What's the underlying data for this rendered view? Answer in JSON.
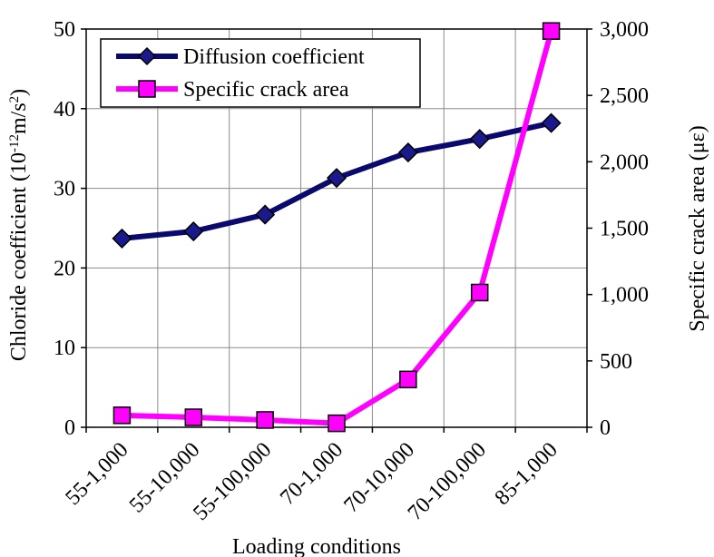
{
  "chart_data": {
    "type": "line",
    "xlabel": "Loading conditions",
    "ylabel_left": "Chloride coefficient (10",
    "ylabel_left_sup": "-12",
    "ylabel_left_mid": "m/s",
    "ylabel_left_sup2": "2",
    "ylabel_left_end": ")",
    "ylabel_right": "Specific crack area (με)",
    "categories": [
      "55-1,000",
      "55-10,000",
      "55-100,000",
      "70-1,000",
      "70-10,000",
      "70-100,000",
      "85-1,000"
    ],
    "ylim_left": [
      0,
      50
    ],
    "ylim_right": [
      0,
      3000
    ],
    "left_ticks": [
      "0",
      "10",
      "20",
      "30",
      "40",
      "50"
    ],
    "right_ticks": [
      "0",
      "500",
      "1,000",
      "1,500",
      "2,000",
      "2,500",
      "3,000"
    ],
    "grid": true,
    "legend_position": "top-left",
    "series": [
      {
        "name": "Diffusion coefficient",
        "axis": "left",
        "marker": "diamond",
        "color": "#0a0a6e",
        "markerColor": "#1a1a8c",
        "values": [
          23.7,
          24.6,
          26.7,
          31.3,
          34.5,
          36.2,
          38.2
        ]
      },
      {
        "name": "Specific crack area",
        "axis": "right",
        "marker": "square",
        "color": "#ff00ff",
        "markerColor": "#ff00ff",
        "values": [
          90,
          75,
          55,
          30,
          360,
          1015,
          2985
        ]
      }
    ]
  }
}
